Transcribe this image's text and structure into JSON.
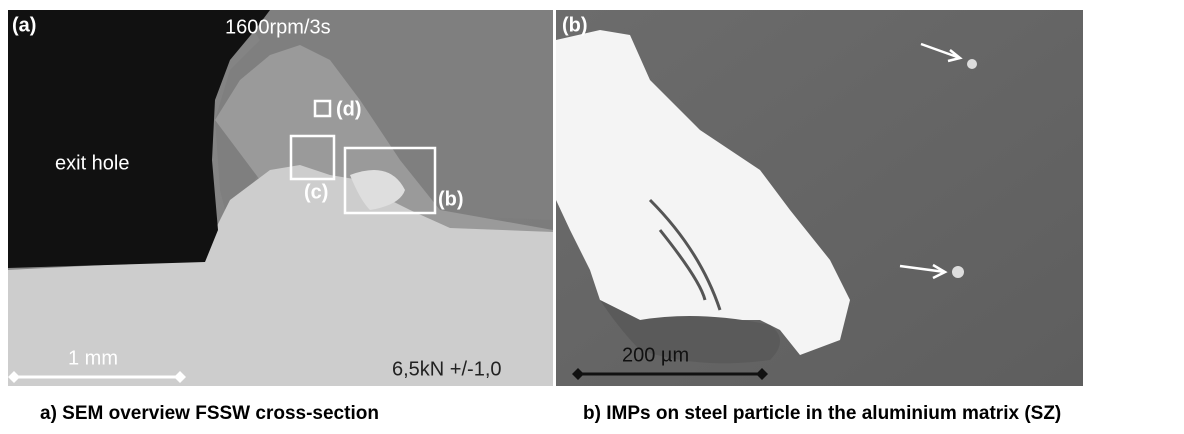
{
  "panel_a": {
    "label": "(a)",
    "condition": "1600rpm/3s",
    "region_label": "exit hole",
    "boxes": [
      "(d)",
      "(c)",
      "(b)"
    ],
    "scale_bar": "1 mm",
    "force": "6,5kN +/-1,0"
  },
  "panel_b": {
    "label": "(b)",
    "scale_bar": "200 µm"
  },
  "captions": [
    "a) SEM overview FSSW cross-section",
    "b) IMPs on steel particle in the aluminium matrix (SZ)"
  ]
}
